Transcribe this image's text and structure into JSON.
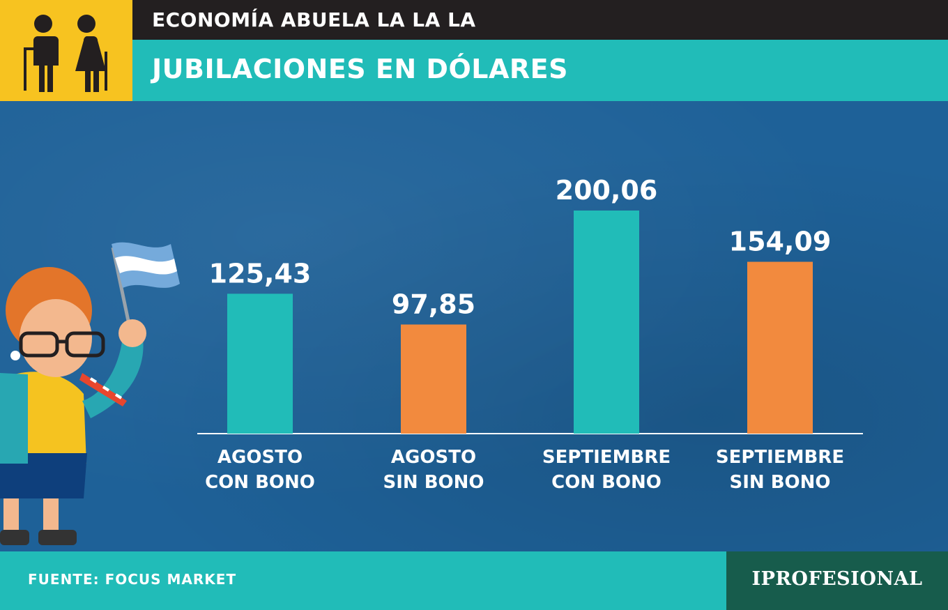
{
  "header": {
    "kicker": "ECONOMÍA ABUELA LA LA LA",
    "title": "JUBILACIONES EN DÓLARES",
    "icon": "elderly-couple-icon"
  },
  "chart_data": {
    "type": "bar",
    "categories": [
      [
        "AGOSTO",
        "CON BONO"
      ],
      [
        "AGOSTO",
        "SIN BONO"
      ],
      [
        "SEPTIEMBRE",
        "CON BONO"
      ],
      [
        "SEPTIEMBRE",
        "SIN BONO"
      ]
    ],
    "values": [
      125.43,
      97.85,
      200.06,
      154.09
    ],
    "value_labels": [
      "125,43",
      "97,85",
      "200,06",
      "154,09"
    ],
    "bar_colors": [
      "#21bcb8",
      "#f28a3e",
      "#21bcb8",
      "#f28a3e"
    ],
    "ylim": [
      0,
      200.06
    ],
    "grid": false,
    "legend": "none"
  },
  "illustration": {
    "icon": "grandmother-with-argentina-flag-icon"
  },
  "footer": {
    "source": "FUENTE: FOCUS MARKET",
    "brand": "IPROFESIONAL"
  },
  "colors": {
    "accent_teal": "#21bcb8",
    "accent_orange": "#f28a3e",
    "header_dark": "#231f20",
    "icon_yellow": "#f7c320",
    "background_blue": "#1e6198",
    "brand_green": "#175c4c"
  }
}
